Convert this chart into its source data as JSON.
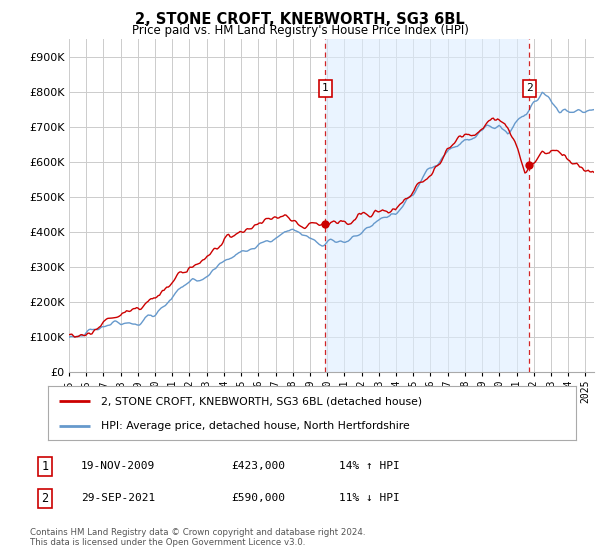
{
  "title": "2, STONE CROFT, KNEBWORTH, SG3 6BL",
  "subtitle": "Price paid vs. HM Land Registry's House Price Index (HPI)",
  "ytick_values": [
    0,
    100000,
    200000,
    300000,
    400000,
    500000,
    600000,
    700000,
    800000,
    900000
  ],
  "ylim": [
    0,
    950000
  ],
  "xlim_start": 1995.0,
  "xlim_end": 2025.5,
  "sale1_date": 2009.89,
  "sale1_price": 423000,
  "sale1_label": "1",
  "sale2_date": 2021.75,
  "sale2_price": 590000,
  "sale2_label": "2",
  "red_line_color": "#cc0000",
  "blue_line_color": "#6699cc",
  "blue_fill_color": "#ddeeff",
  "marker_vline_color": "#cc0000",
  "legend_label_red": "2, STONE CROFT, KNEBWORTH, SG3 6BL (detached house)",
  "legend_label_blue": "HPI: Average price, detached house, North Hertfordshire",
  "table_row1": [
    "1",
    "19-NOV-2009",
    "£423,000",
    "14% ↑ HPI"
  ],
  "table_row2": [
    "2",
    "29-SEP-2021",
    "£590,000",
    "11% ↓ HPI"
  ],
  "footer": "Contains HM Land Registry data © Crown copyright and database right 2024.\nThis data is licensed under the Open Government Licence v3.0.",
  "background_color": "#ffffff",
  "grid_color": "#cccccc"
}
